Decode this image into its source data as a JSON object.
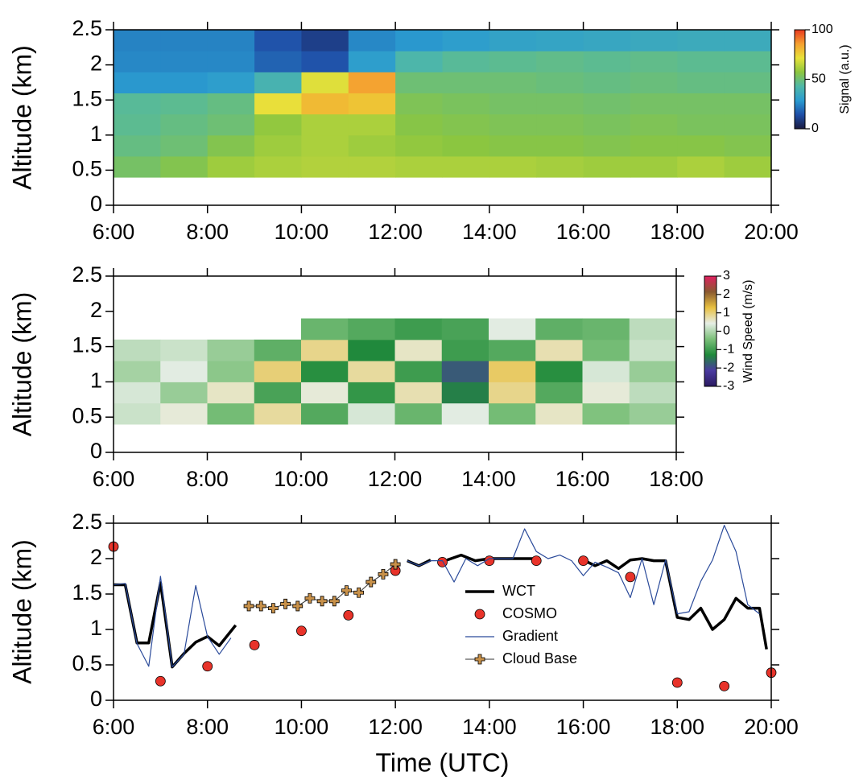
{
  "chart_data": [
    {
      "type": "heatmap",
      "ylabel": "Altitude (km)",
      "colorbar_label": "Signal (a.u.)",
      "xlim": [
        6,
        20
      ],
      "ylim": [
        0,
        2.5
      ],
      "xticks": [
        {
          "value": 6,
          "label": "6:00"
        },
        {
          "value": 8,
          "label": "8:00"
        },
        {
          "value": 10,
          "label": "10:00"
        },
        {
          "value": 12,
          "label": "12:00"
        },
        {
          "value": 14,
          "label": "14:00"
        },
        {
          "value": 16,
          "label": "16:00"
        },
        {
          "value": 18,
          "label": "18:00"
        },
        {
          "value": 20,
          "label": "20:00"
        }
      ],
      "yticks": [
        0,
        0.5,
        1,
        1.5,
        2,
        2.5
      ],
      "zlim": [
        0,
        100
      ],
      "zticks": [
        0,
        50,
        100
      ],
      "colormap": [
        "#1a1a40",
        "#1f4fa8",
        "#2a9bd0",
        "#4fb8a8",
        "#8cc63f",
        "#e8e23a",
        "#f5a030",
        "#e83a20"
      ],
      "x_edges": [
        6,
        7,
        8,
        9,
        10,
        11,
        12,
        13,
        14,
        15,
        16,
        17,
        18,
        19,
        20
      ],
      "y_edges": [
        0.4,
        0.7,
        1.0,
        1.3,
        1.6,
        1.9,
        2.2,
        2.5
      ],
      "z": [
        [
          52,
          55,
          60,
          62,
          63,
          63,
          62,
          62,
          62,
          61,
          60,
          60,
          62,
          60
        ],
        [
          48,
          50,
          55,
          60,
          62,
          60,
          58,
          57,
          56,
          56,
          55,
          56,
          56,
          55
        ],
        [
          46,
          48,
          50,
          58,
          62,
          62,
          56,
          55,
          54,
          54,
          53,
          54,
          53,
          53
        ],
        [
          45,
          46,
          48,
          72,
          80,
          78,
          54,
          53,
          52,
          52,
          51,
          52,
          52,
          52
        ],
        [
          28,
          28,
          30,
          40,
          70,
          85,
          50,
          50,
          50,
          49,
          48,
          49,
          48,
          48
        ],
        [
          25,
          25,
          25,
          18,
          15,
          30,
          42,
          45,
          46,
          47,
          46,
          47,
          46,
          46
        ],
        [
          24,
          24,
          24,
          15,
          10,
          25,
          28,
          30,
          32,
          33,
          34,
          35,
          36,
          36
        ]
      ]
    },
    {
      "type": "heatmap",
      "ylabel": "Altitude (km)",
      "colorbar_label": "Wind Speed (m/s)",
      "xlim": [
        6,
        18
      ],
      "ylim": [
        0,
        2.5
      ],
      "xticks": [
        {
          "value": 6,
          "label": "6:00"
        },
        {
          "value": 8,
          "label": "8:00"
        },
        {
          "value": 10,
          "label": "10:00"
        },
        {
          "value": 12,
          "label": "12:00"
        },
        {
          "value": 14,
          "label": "14:00"
        },
        {
          "value": 16,
          "label": "16:00"
        },
        {
          "value": 18,
          "label": "18:00"
        }
      ],
      "yticks": [
        0,
        0.5,
        1,
        1.5,
        2,
        2.5
      ],
      "zlim": [
        -3,
        3
      ],
      "zticks": [
        -3,
        -2,
        -1,
        0,
        1,
        2,
        3
      ],
      "colormap": [
        "#2a1a60",
        "#4a3aa0",
        "#1f8a3a",
        "#7cc07a",
        "#e6eee6",
        "#e8c040",
        "#8a5a30",
        "#e02060"
      ],
      "x_edges": [
        6,
        7,
        8,
        9,
        10,
        11,
        12,
        13,
        14,
        15,
        16,
        17,
        18
      ],
      "y_edges": [
        0.4,
        0.7,
        1.0,
        1.3,
        1.6,
        1.9
      ],
      "z": [
        [
          0.2,
          0.5,
          -0.5,
          0.8,
          -0.8,
          0.3,
          -0.6,
          0.4,
          -0.5,
          0.6,
          -0.4,
          -0.2
        ],
        [
          0.3,
          -0.2,
          0.6,
          -0.9,
          0.5,
          -1.1,
          0.7,
          -1.4,
          0.9,
          -0.8,
          0.5,
          0.1
        ],
        [
          -0.1,
          0.4,
          -0.3,
          1.0,
          -1.2,
          0.8,
          -1.0,
          -1.8,
          1.1,
          -1.2,
          0.3,
          -0.2
        ],
        [
          0.1,
          0.2,
          -0.2,
          -0.7,
          0.9,
          -1.3,
          0.6,
          -1.0,
          -0.8,
          0.7,
          -0.5,
          0.2
        ],
        [
          null,
          null,
          null,
          null,
          -0.6,
          -0.8,
          -1.0,
          -0.9,
          0.4,
          -0.7,
          -0.6,
          0.1
        ]
      ]
    },
    {
      "type": "line",
      "ylabel": "Altitude (km)",
      "xlabel": "Time (UTC)",
      "xlim": [
        6,
        20
      ],
      "ylim": [
        0,
        2.5
      ],
      "xticks": [
        {
          "value": 6,
          "label": "6:00"
        },
        {
          "value": 8,
          "label": "8:00"
        },
        {
          "value": 10,
          "label": "10:00"
        },
        {
          "value": 12,
          "label": "12:00"
        },
        {
          "value": 14,
          "label": "14:00"
        },
        {
          "value": 16,
          "label": "16:00"
        },
        {
          "value": 18,
          "label": "18:00"
        },
        {
          "value": 20,
          "label": "20:00"
        }
      ],
      "yticks": [
        0,
        0.5,
        1,
        1.5,
        2,
        2.5
      ],
      "legend": "lower right",
      "series": [
        {
          "name": "WCT",
          "color": "#000000",
          "style": "line",
          "width": 3.5,
          "x": [
            6.0,
            6.25,
            6.5,
            6.75,
            7.0,
            7.25,
            7.5,
            7.75,
            8.0,
            8.25,
            8.6,
            10.0,
            12.25,
            12.5,
            12.75,
            12.9,
            13.1,
            13.4,
            13.7,
            14.0,
            14.5,
            15.0,
            15.5,
            16.0,
            16.25,
            16.5,
            16.75,
            17.0,
            17.25,
            17.5,
            17.75,
            18.0,
            18.25,
            18.5,
            18.75,
            19.0,
            19.25,
            19.5,
            19.75,
            19.9
          ],
          "values": [
            1.63,
            1.63,
            0.81,
            0.81,
            1.66,
            0.47,
            0.66,
            0.82,
            0.9,
            0.77,
            1.06,
            null,
            1.97,
            1.9,
            1.98,
            null,
            1.98,
            2.05,
            1.97,
            2.0,
            2.0,
            2.0,
            null,
            1.98,
            1.9,
            1.97,
            1.86,
            1.98,
            2.0,
            1.97,
            1.97,
            1.17,
            1.14,
            1.3,
            1.0,
            1.14,
            1.44,
            1.3,
            1.3,
            0.72
          ]
        },
        {
          "name": "COSMO",
          "color": "#e8332a",
          "style": "marker",
          "x": [
            6,
            7,
            8,
            9,
            10,
            11,
            12,
            13,
            14,
            15,
            16,
            17,
            18,
            19,
            20
          ],
          "values": [
            2.17,
            0.27,
            0.48,
            0.78,
            0.98,
            1.2,
            1.83,
            1.95,
            1.97,
            1.97,
            1.97,
            1.74,
            0.25,
            0.2,
            0.39
          ]
        },
        {
          "name": "Gradient",
          "color": "#2a4a9a",
          "style": "line",
          "width": 1.2,
          "x": [
            6.0,
            6.25,
            6.5,
            6.75,
            7.0,
            7.25,
            7.5,
            7.75,
            8.0,
            8.25,
            8.5,
            10.0,
            12.25,
            12.5,
            12.75,
            13.0,
            13.25,
            13.5,
            13.75,
            14.0,
            14.25,
            14.5,
            14.75,
            15.0,
            15.25,
            15.5,
            15.75,
            16.0,
            16.25,
            16.5,
            16.75,
            17.0,
            17.25,
            17.5,
            17.75,
            18.0,
            18.25,
            18.5,
            18.75,
            19.0,
            19.25,
            19.5,
            19.75
          ],
          "values": [
            1.63,
            1.65,
            0.8,
            0.48,
            1.75,
            0.47,
            0.65,
            1.62,
            0.9,
            0.65,
            0.88,
            null,
            1.97,
            1.9,
            1.97,
            1.97,
            1.67,
            2.0,
            1.9,
            2.0,
            2.0,
            2.0,
            2.42,
            2.1,
            2.0,
            2.05,
            1.97,
            1.76,
            1.95,
            1.88,
            1.8,
            1.45,
            2.0,
            1.35,
            1.98,
            1.22,
            1.25,
            1.68,
            1.98,
            2.47,
            2.1,
            1.35,
            1.22
          ]
        },
        {
          "name": "Cloud Base",
          "color": "#c8914a",
          "style": "plus",
          "x": [
            8.88,
            9.14,
            9.4,
            9.66,
            9.92,
            10.18,
            10.44,
            10.7,
            10.96,
            11.22,
            11.48,
            11.74,
            12.0
          ],
          "values": [
            1.33,
            1.33,
            1.3,
            1.36,
            1.33,
            1.44,
            1.4,
            1.4,
            1.55,
            1.52,
            1.67,
            1.78,
            1.92
          ]
        }
      ]
    }
  ]
}
